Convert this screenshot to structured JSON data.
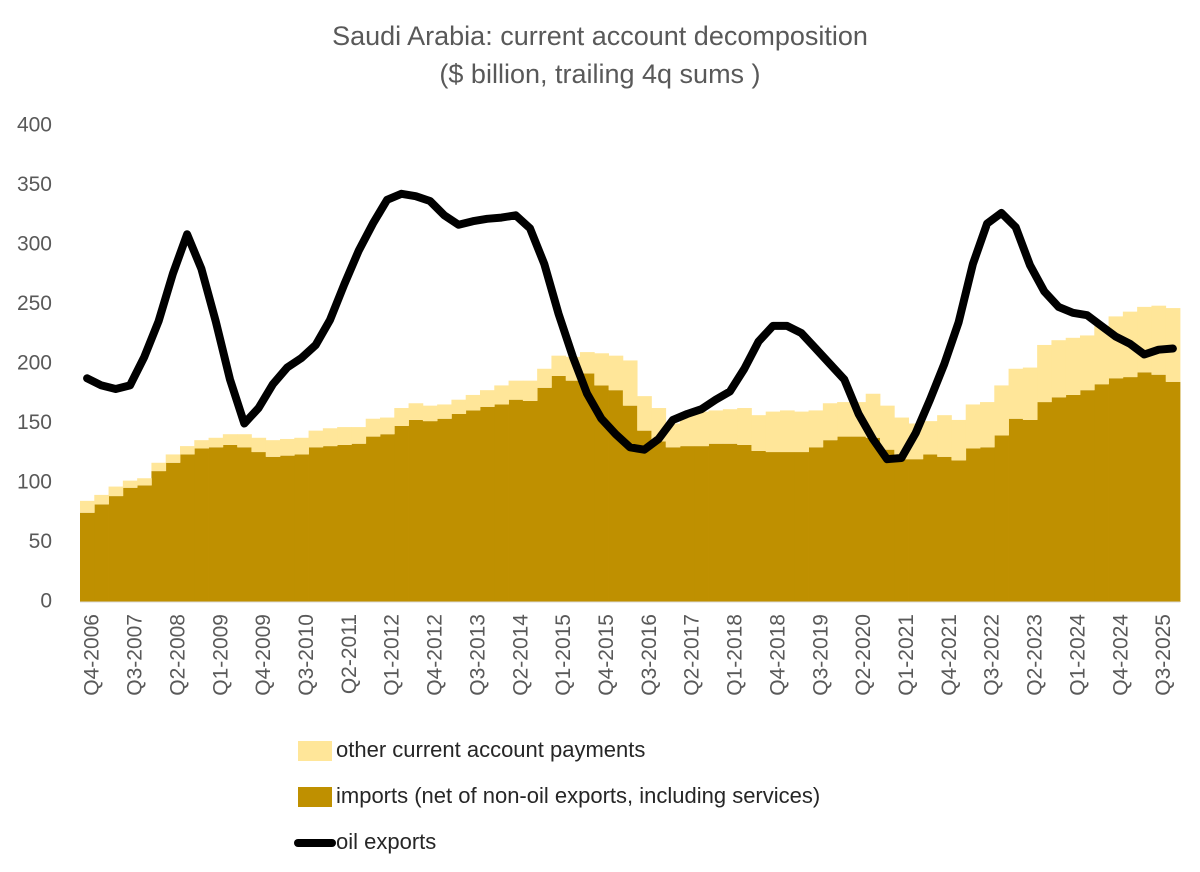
{
  "chart_data": {
    "type": "bar",
    "stacked": true,
    "title": "Saudi Arabia: current account decomposition",
    "subtitle": "($ billion, trailing 4q sums )",
    "categories": [
      "Q4-2006",
      null,
      null,
      "Q3-2007",
      null,
      null,
      "Q2-2008",
      null,
      null,
      "Q1-2009",
      null,
      null,
      "Q4-2009",
      null,
      null,
      "Q3-2010",
      null,
      null,
      "Q2-2011",
      null,
      null,
      "Q1-2012",
      null,
      null,
      "Q4-2012",
      null,
      null,
      "Q3-2013",
      null,
      null,
      "Q2-2014",
      null,
      null,
      "Q1-2015",
      null,
      null,
      "Q4-2015",
      null,
      null,
      "Q3-2016",
      null,
      null,
      "Q2-2017",
      null,
      null,
      "Q1-2018",
      null,
      null,
      "Q4-2018",
      null,
      null,
      "Q3-2019",
      null,
      null,
      "Q2-2020",
      null,
      null,
      "Q1-2021",
      null,
      null,
      "Q4-2021",
      null,
      null,
      "Q3-2022",
      null,
      null,
      "Q2-2023",
      null,
      null,
      "Q1-2024",
      null,
      null,
      "Q4-2024",
      null,
      null,
      "Q3-2025",
      null
    ],
    "series": [
      {
        "name": "imports (net of non-oil exports, including services)",
        "type": "bar",
        "color": "#bf9000",
        "values": [
          75,
          82,
          89,
          96,
          98,
          110,
          117,
          124,
          129,
          130,
          132,
          130,
          126,
          122,
          123,
          124,
          130,
          131,
          132,
          133,
          139,
          141,
          148,
          153,
          152,
          154,
          158,
          161,
          164,
          166,
          170,
          169,
          180,
          190,
          186,
          192,
          182,
          178,
          165,
          144,
          135,
          130,
          131,
          131,
          133,
          133,
          132,
          127,
          126,
          126,
          126,
          130,
          136,
          139,
          139,
          138,
          128,
          120,
          120,
          124,
          122,
          119,
          129,
          130,
          140,
          154,
          153,
          168,
          172,
          174,
          178,
          183,
          188,
          189,
          193,
          191,
          185
        ]
      },
      {
        "name": "other current account payments",
        "type": "bar",
        "color": "#ffe699",
        "values": [
          10,
          8,
          8,
          6,
          6,
          7,
          7,
          7,
          7,
          8,
          9,
          11,
          12,
          14,
          14,
          14,
          14,
          15,
          15,
          14,
          15,
          14,
          15,
          14,
          13,
          12,
          12,
          13,
          14,
          16,
          16,
          17,
          16,
          17,
          20,
          18,
          27,
          29,
          38,
          29,
          28,
          20,
          27,
          29,
          28,
          29,
          31,
          30,
          34,
          35,
          34,
          31,
          31,
          29,
          29,
          37,
          37,
          35,
          30,
          28,
          35,
          34,
          37,
          38,
          42,
          42,
          44,
          48,
          48,
          48,
          46,
          49,
          52,
          55,
          55,
          58,
          62
        ]
      },
      {
        "name": "oil exports",
        "type": "line",
        "color": "#000000",
        "values": [
          188,
          182,
          179,
          182,
          206,
          236,
          276,
          309,
          280,
          236,
          187,
          150,
          163,
          183,
          197,
          205,
          216,
          237,
          267,
          295,
          318,
          338,
          343,
          341,
          337,
          325,
          317,
          320,
          322,
          323,
          325,
          314,
          284,
          242,
          206,
          175,
          154,
          141,
          130,
          128,
          137,
          153,
          158,
          162,
          170,
          177,
          196,
          219,
          232,
          232,
          226,
          213,
          200,
          187,
          158,
          137,
          120,
          121,
          142,
          170,
          200,
          235,
          284,
          318,
          327,
          315,
          283,
          261,
          248,
          243,
          241,
          232,
          223,
          217,
          208,
          212,
          213
        ]
      }
    ],
    "ylim": [
      0,
      400
    ],
    "yticks": [
      0,
      50,
      100,
      150,
      200,
      250,
      300,
      350,
      400
    ],
    "grid": false
  }
}
